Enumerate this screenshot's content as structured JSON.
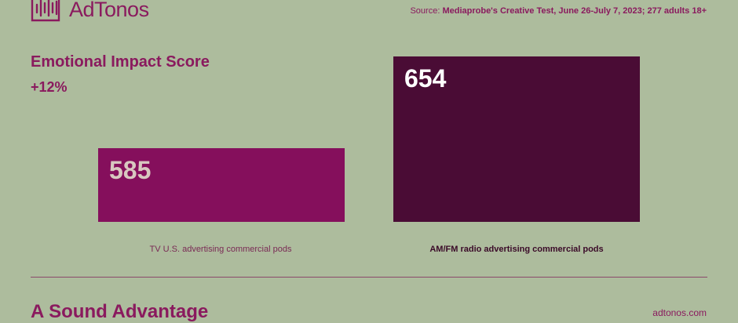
{
  "brand": {
    "name": "AdTonos",
    "url": "adtonos.com"
  },
  "source": {
    "prefix": "Source:",
    "text": "Mediaprobe's Creative Test, June 26-July 7, 2023; 277 adults 18+"
  },
  "footer": {
    "title": "A Sound Advantage"
  },
  "chart_data": {
    "type": "bar",
    "title": "Emotional Impact Score",
    "subtitle": "+12%",
    "categories": [
      "TV U.S. advertising commercial pods",
      "AM/FM radio advertising commercial pods"
    ],
    "values": [
      585,
      654
    ],
    "value_labels": [
      "585",
      "654"
    ],
    "colors": [
      "#850f5c",
      "#4a0c35"
    ],
    "label_colors": [
      "#d8c8c0",
      "#ffffff"
    ],
    "category_label_colors": [
      "#7a2a55",
      "#3a0a28"
    ],
    "xlabel": "",
    "ylabel": "",
    "ylim": [
      530,
      654
    ],
    "grid": false
  }
}
